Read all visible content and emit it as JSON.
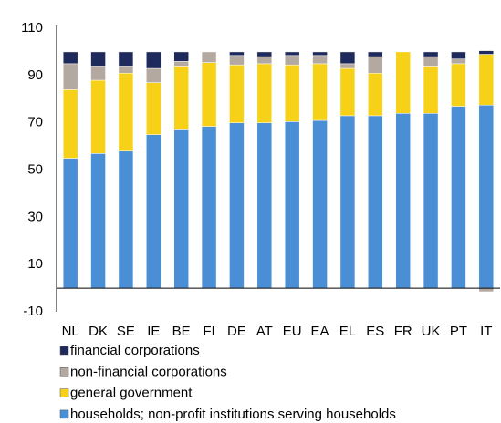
{
  "chart_data": {
    "type": "stacked_bar",
    "categories": [
      "NL",
      "DK",
      "SE",
      "IE",
      "BE",
      "FI",
      "DE",
      "AT",
      "EU",
      "EA",
      "EL",
      "ES",
      "FR",
      "UK",
      "PT",
      "IT"
    ],
    "series": [
      {
        "name": "households; non-profit institutions serving households",
        "color": "#4a8fd6",
        "values": [
          55,
          57,
          58,
          65,
          67,
          68.5,
          70,
          70,
          70.5,
          71,
          73,
          73,
          74,
          74,
          77,
          77.5
        ]
      },
      {
        "name": "general government",
        "color": "#f7d117",
        "values": [
          29,
          31,
          33,
          22,
          27,
          27,
          24.5,
          25,
          24,
          24,
          20,
          18,
          26,
          20,
          18,
          21.5
        ]
      },
      {
        "name": "non-financial corporations",
        "color": "#b3a9a1",
        "values": [
          11,
          6,
          3,
          6,
          2,
          4.5,
          4,
          3,
          4,
          3.5,
          2,
          7,
          0,
          4,
          2,
          -1.5
        ]
      },
      {
        "name": "financial corporations",
        "color": "#1f2a5c",
        "values": [
          5,
          6,
          6,
          7,
          4,
          0,
          1.5,
          2,
          1.5,
          1.5,
          5,
          2,
          0,
          2,
          3,
          1.5
        ]
      }
    ],
    "ylim": [
      -10,
      110
    ],
    "yticks": [
      -10,
      10,
      30,
      50,
      70,
      90,
      110
    ],
    "grid": false,
    "legend": "bottom"
  }
}
